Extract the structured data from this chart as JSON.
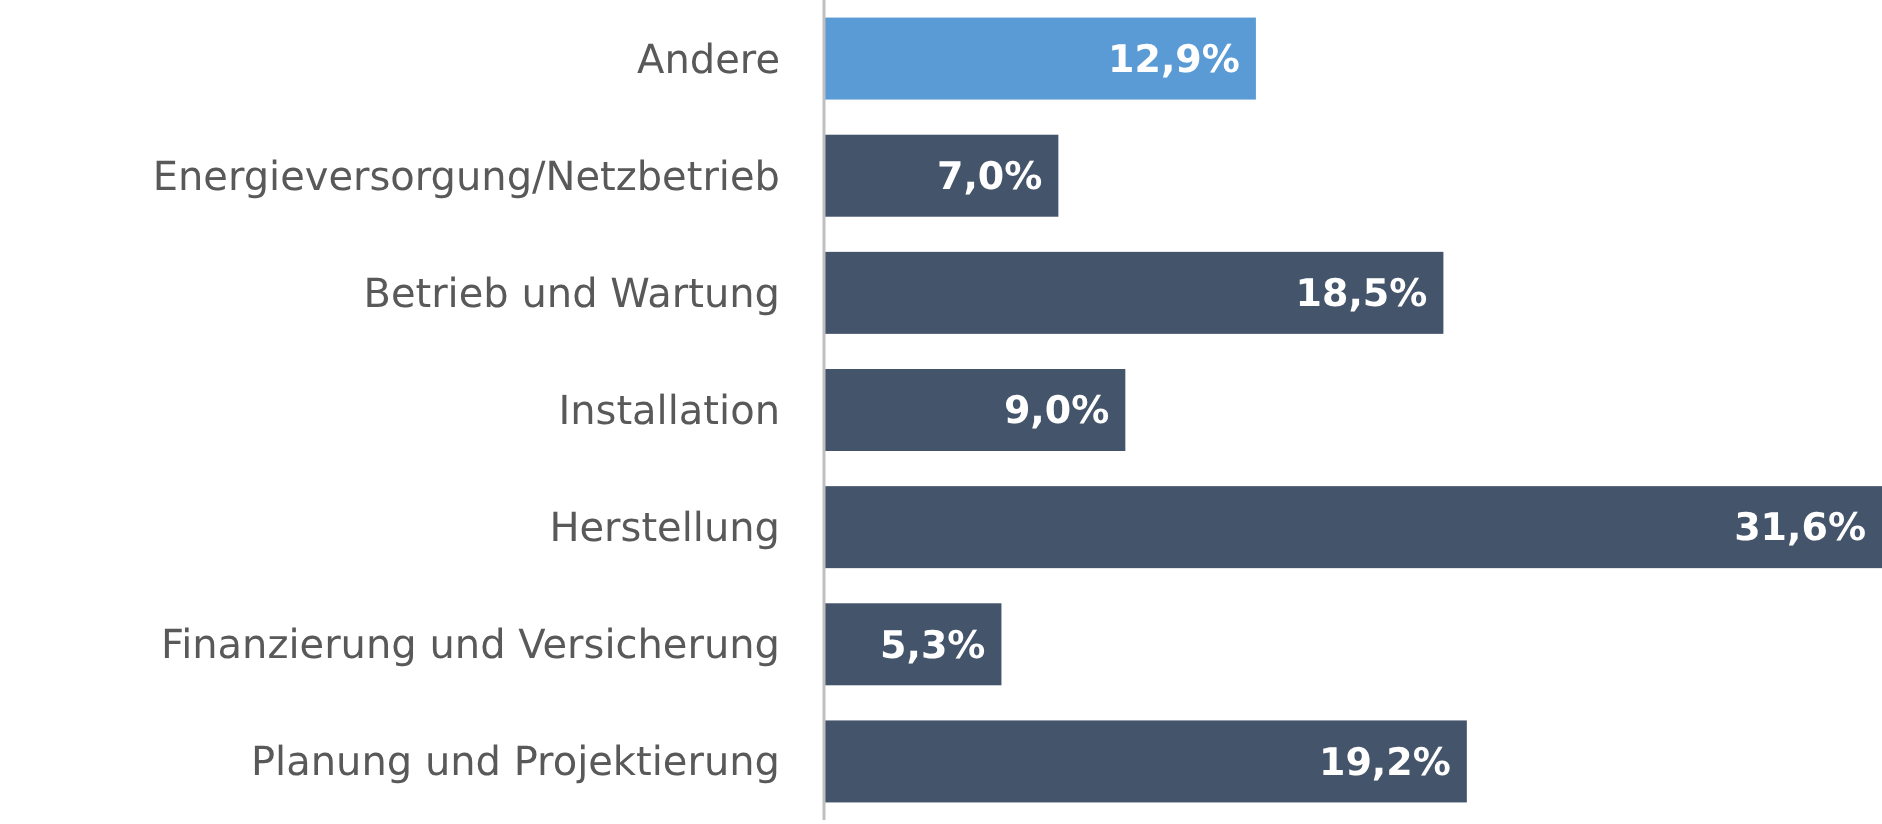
{
  "chart_data": {
    "type": "bar",
    "orientation": "horizontal",
    "categories": [
      "Andere",
      "Energieversorgung/Netzbetrieb",
      "Betrieb und Wartung",
      "Installation",
      "Herstellung",
      "Finanzierung und Versicherung",
      "Planung und Projektierung"
    ],
    "values": [
      12.9,
      7.0,
      18.5,
      9.0,
      31.6,
      5.3,
      19.2
    ],
    "colors": [
      "#5b9bd5",
      "#44546a",
      "#44546a",
      "#44546a",
      "#44546a",
      "#44546a",
      "#44546a"
    ],
    "value_labels": [
      "12,9%",
      "7,0%",
      "18,5%",
      "9,0%",
      "31,6%",
      "5,3%",
      "19,2%"
    ],
    "grid": false
  }
}
